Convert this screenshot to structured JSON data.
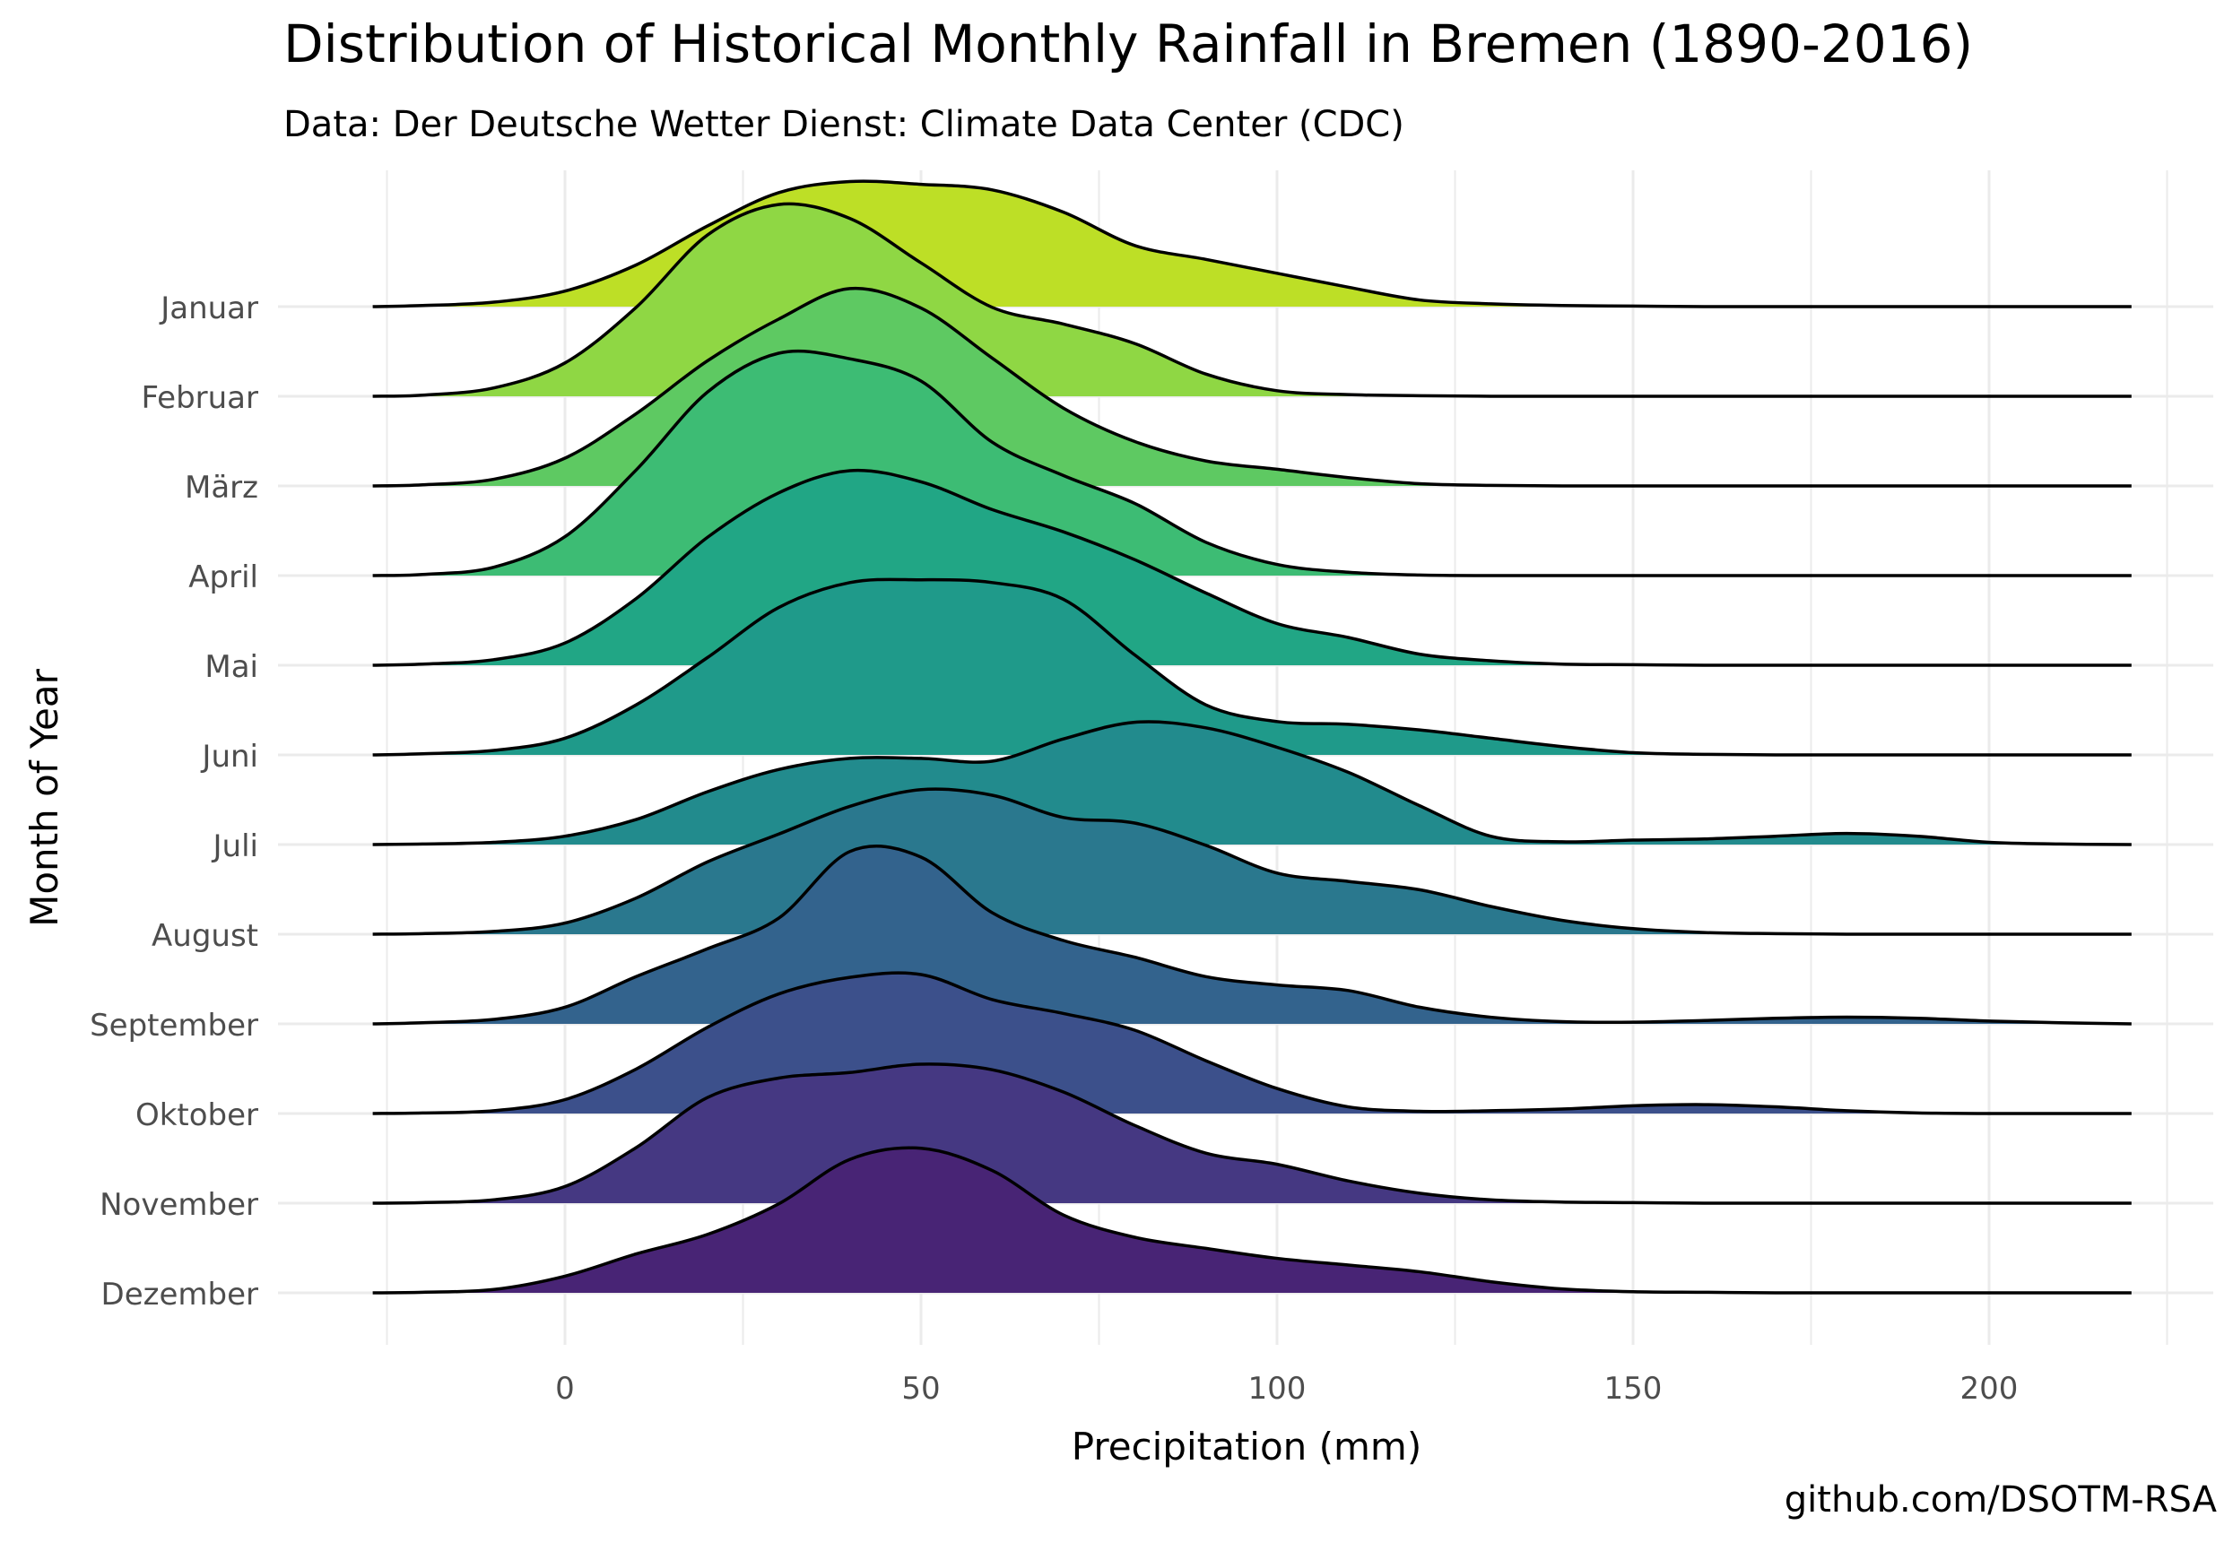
{
  "chart_data": {
    "type": "ridgeline",
    "title": "Distribution of Historical Monthly Rainfall in Bremen (1890-2016)",
    "subtitle": "Data: Der Deutsche Wetter Dienst: Climate Data Center (CDC)",
    "caption": "github.com/DSOTM-RSA",
    "xlabel": "Precipitation (mm)",
    "ylabel": "Month of Year",
    "xlim": [
      -25,
      220
    ],
    "x_ticks": [
      0,
      50,
      100,
      150,
      200
    ],
    "grid": true,
    "series": [
      {
        "name": "Januar",
        "color": "#bddf26",
        "x": [
          -27,
          -20,
          -10,
          0,
          10,
          20,
          30,
          40,
          50,
          60,
          70,
          80,
          90,
          100,
          110,
          120,
          130,
          140,
          150,
          160,
          170,
          180,
          190,
          200,
          210,
          220
        ],
        "y": [
          0.0,
          0.002,
          0.008,
          0.028,
          0.075,
          0.145,
          0.205,
          0.225,
          0.22,
          0.21,
          0.17,
          0.11,
          0.085,
          0.06,
          0.035,
          0.012,
          0.005,
          0.002,
          0.001,
          0,
          0,
          0,
          0,
          0,
          0,
          0
        ]
      },
      {
        "name": "Februar",
        "color": "#8fd744",
        "x": [
          -27,
          -20,
          -10,
          0,
          10,
          20,
          30,
          40,
          50,
          60,
          70,
          80,
          90,
          100,
          110,
          120,
          130,
          140,
          150,
          160,
          170,
          180,
          190,
          200,
          210,
          220
        ],
        "y": [
          0.0,
          0.002,
          0.015,
          0.06,
          0.16,
          0.29,
          0.345,
          0.32,
          0.24,
          0.16,
          0.13,
          0.095,
          0.04,
          0.01,
          0.003,
          0.001,
          0,
          0,
          0,
          0,
          0,
          0,
          0,
          0,
          0,
          0
        ]
      },
      {
        "name": "März",
        "color": "#5ec962",
        "x": [
          -27,
          -20,
          -10,
          0,
          10,
          20,
          30,
          40,
          50,
          60,
          70,
          80,
          90,
          100,
          110,
          120,
          130,
          140,
          150,
          160,
          170,
          180,
          190,
          200,
          210,
          220
        ],
        "y": [
          0.0,
          0.002,
          0.012,
          0.05,
          0.13,
          0.225,
          0.3,
          0.355,
          0.32,
          0.23,
          0.14,
          0.08,
          0.045,
          0.03,
          0.015,
          0.004,
          0.001,
          0,
          0,
          0,
          0,
          0,
          0,
          0,
          0,
          0
        ]
      },
      {
        "name": "April",
        "color": "#3dbc74",
        "x": [
          -27,
          -20,
          -10,
          0,
          10,
          20,
          30,
          40,
          50,
          60,
          70,
          80,
          90,
          100,
          110,
          120,
          130,
          140,
          150,
          160,
          170,
          180,
          190,
          200,
          210,
          220
        ],
        "y": [
          0.0,
          0.002,
          0.015,
          0.07,
          0.19,
          0.33,
          0.4,
          0.39,
          0.35,
          0.24,
          0.18,
          0.13,
          0.06,
          0.02,
          0.006,
          0.001,
          0,
          0,
          0,
          0,
          0,
          0,
          0,
          0,
          0,
          0
        ]
      },
      {
        "name": "Mai",
        "color": "#21a685",
        "x": [
          -27,
          -20,
          -10,
          0,
          10,
          20,
          30,
          40,
          50,
          60,
          70,
          80,
          90,
          100,
          110,
          120,
          130,
          140,
          150,
          160,
          170,
          180,
          190,
          200,
          210,
          220
        ],
        "y": [
          0.0,
          0.002,
          0.01,
          0.04,
          0.12,
          0.23,
          0.31,
          0.35,
          0.33,
          0.28,
          0.24,
          0.19,
          0.13,
          0.075,
          0.05,
          0.02,
          0.008,
          0.002,
          0.001,
          0,
          0,
          0,
          0,
          0,
          0,
          0
        ]
      },
      {
        "name": "Juni",
        "color": "#1f9a8a",
        "x": [
          -27,
          -20,
          -10,
          0,
          10,
          20,
          30,
          40,
          50,
          60,
          70,
          80,
          90,
          100,
          110,
          120,
          130,
          140,
          150,
          160,
          170,
          180,
          190,
          200,
          210,
          220
        ],
        "y": [
          0.0,
          0.002,
          0.008,
          0.03,
          0.09,
          0.175,
          0.265,
          0.31,
          0.315,
          0.31,
          0.28,
          0.18,
          0.09,
          0.06,
          0.055,
          0.045,
          0.03,
          0.015,
          0.004,
          0.001,
          0,
          0,
          0,
          0,
          0,
          0
        ]
      },
      {
        "name": "Juli",
        "color": "#228b8d",
        "x": [
          -27,
          -20,
          -10,
          0,
          10,
          20,
          30,
          40,
          50,
          60,
          70,
          80,
          90,
          100,
          110,
          120,
          130,
          140,
          150,
          160,
          170,
          180,
          190,
          200,
          210,
          220
        ],
        "y": [
          0.0,
          0.001,
          0.004,
          0.015,
          0.045,
          0.095,
          0.135,
          0.155,
          0.155,
          0.15,
          0.19,
          0.22,
          0.21,
          0.175,
          0.13,
          0.07,
          0.015,
          0.005,
          0.008,
          0.01,
          0.015,
          0.02,
          0.015,
          0.004,
          0.001,
          0
        ]
      },
      {
        "name": "August",
        "color": "#2a788e",
        "x": [
          -27,
          -20,
          -10,
          0,
          10,
          20,
          30,
          40,
          50,
          60,
          70,
          80,
          90,
          100,
          110,
          120,
          130,
          140,
          150,
          160,
          170,
          180,
          190,
          200,
          210,
          220
        ],
        "y": [
          0.0,
          0.001,
          0.005,
          0.02,
          0.065,
          0.13,
          0.18,
          0.23,
          0.26,
          0.25,
          0.21,
          0.2,
          0.16,
          0.11,
          0.095,
          0.08,
          0.05,
          0.025,
          0.01,
          0.003,
          0.001,
          0,
          0,
          0,
          0,
          0
        ]
      },
      {
        "name": "September",
        "color": "#33638d",
        "x": [
          -27,
          -20,
          -10,
          0,
          10,
          20,
          30,
          40,
          50,
          60,
          70,
          80,
          90,
          100,
          110,
          120,
          130,
          140,
          150,
          160,
          170,
          180,
          190,
          200,
          210,
          220
        ],
        "y": [
          0.0,
          0.002,
          0.008,
          0.03,
          0.085,
          0.135,
          0.19,
          0.31,
          0.3,
          0.2,
          0.15,
          0.12,
          0.085,
          0.07,
          0.06,
          0.03,
          0.012,
          0.004,
          0.003,
          0.006,
          0.01,
          0.012,
          0.01,
          0.005,
          0.002,
          0
        ]
      },
      {
        "name": "Oktober",
        "color": "#3c508b",
        "x": [
          -27,
          -20,
          -10,
          0,
          10,
          20,
          30,
          40,
          50,
          60,
          70,
          80,
          90,
          100,
          110,
          120,
          130,
          140,
          150,
          160,
          170,
          180,
          190,
          200,
          210,
          220
        ],
        "y": [
          0.0,
          0.001,
          0.005,
          0.025,
          0.08,
          0.155,
          0.215,
          0.245,
          0.25,
          0.205,
          0.18,
          0.15,
          0.095,
          0.045,
          0.012,
          0.004,
          0.005,
          0.008,
          0.014,
          0.016,
          0.012,
          0.005,
          0.001,
          0,
          0,
          0
        ]
      },
      {
        "name": "November",
        "color": "#453882",
        "x": [
          -27,
          -20,
          -10,
          0,
          10,
          20,
          30,
          40,
          50,
          60,
          70,
          80,
          90,
          100,
          110,
          120,
          130,
          140,
          150,
          160,
          170,
          180,
          190,
          200,
          210,
          220
        ],
        "y": [
          0.0,
          0.001,
          0.006,
          0.03,
          0.1,
          0.19,
          0.225,
          0.235,
          0.25,
          0.24,
          0.2,
          0.14,
          0.09,
          0.07,
          0.04,
          0.018,
          0.006,
          0.002,
          0.001,
          0,
          0,
          0,
          0,
          0,
          0,
          0
        ]
      },
      {
        "name": "Dezember",
        "color": "#482475",
        "x": [
          -27,
          -20,
          -10,
          0,
          10,
          20,
          30,
          40,
          50,
          60,
          70,
          80,
          90,
          100,
          110,
          120,
          130,
          140,
          150,
          160,
          170,
          180,
          190,
          200,
          210,
          220
        ],
        "y": [
          0.0,
          0.001,
          0.006,
          0.03,
          0.07,
          0.105,
          0.16,
          0.24,
          0.26,
          0.22,
          0.14,
          0.1,
          0.08,
          0.062,
          0.05,
          0.038,
          0.02,
          0.007,
          0.002,
          0.001,
          0,
          0,
          0,
          0,
          0,
          0
        ]
      }
    ]
  }
}
